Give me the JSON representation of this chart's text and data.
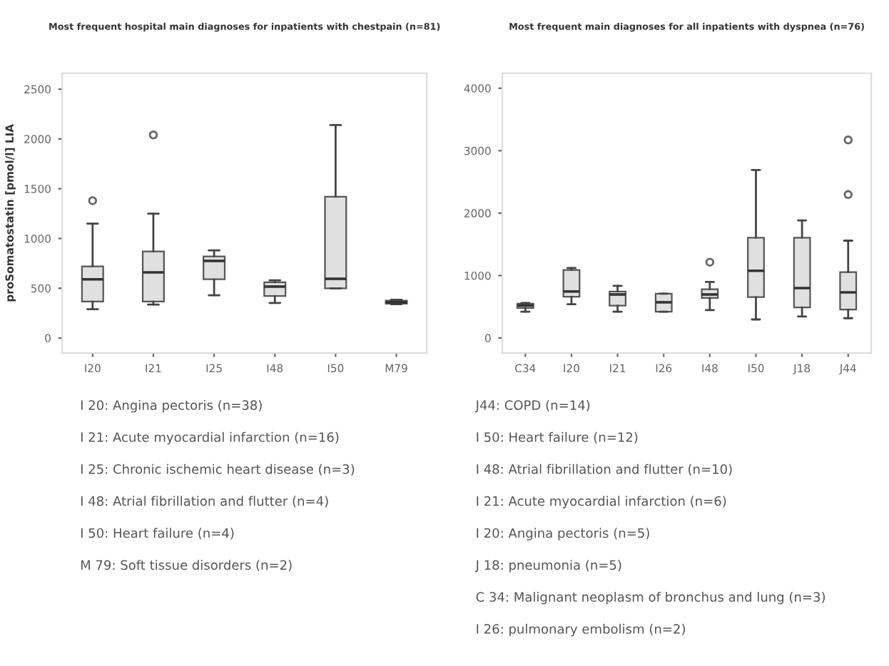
{
  "chart_data": [
    {
      "type": "box",
      "title": "Most frequent hospital main diagnoses for inpatients with chestpain (n=81)",
      "ylabel": "proSomatostatin [pmol/l] LIA",
      "categories": [
        "I20",
        "I21",
        "I25",
        "I48",
        "I50",
        "M79"
      ],
      "ylim": [
        -150,
        2660
      ],
      "yticks": [
        0,
        500,
        1000,
        1500,
        2000,
        2500
      ],
      "color": "#e0e0e0",
      "boxes": [
        {
          "low": 290,
          "q1": 366,
          "median": 590,
          "q3": 720,
          "high": 1150,
          "outliers": [
            1380
          ]
        },
        {
          "low": 336,
          "q1": 366,
          "median": 660,
          "q3": 870,
          "high": 1250,
          "outliers": [
            2040
          ]
        },
        {
          "low": 430,
          "q1": 590,
          "median": 775,
          "q3": 820,
          "high": 880
        },
        {
          "low": 353,
          "q1": 422,
          "median": 517,
          "q3": 560,
          "high": 580
        },
        {
          "low": 500,
          "q1": 500,
          "median": 595,
          "q3": 1420,
          "high": 2140
        },
        {
          "low": 340,
          "q1": 345,
          "median": 360,
          "q3": 375,
          "high": 385
        }
      ],
      "annotations": [
        "I 20: Angina pectoris (n=38)",
        "I 21: Acute myocardial infarction (n=16)",
        "I 25: Chronic ischemic heart disease (n=3)",
        "I 48: Atrial fibrillation and flutter (n=4)",
        "I 50: Heart failure (n=4)",
        "M 79: Soft tissue disorders (n=2)"
      ]
    },
    {
      "type": "box",
      "title": "Most frequent main diagnoses for all inpatients with dyspnea (n=76)",
      "categories": [
        "C34",
        "I20",
        "I21",
        "I26",
        "I48",
        "I50",
        "J18",
        "J44"
      ],
      "ylim": [
        -240,
        4240
      ],
      "yticks": [
        0,
        1000,
        2000,
        3000,
        4000
      ],
      "color": "#e0e0e0",
      "boxes": [
        {
          "low": 420,
          "q1": 480,
          "median": 520,
          "q3": 550,
          "high": 560
        },
        {
          "low": 540,
          "q1": 660,
          "median": 745,
          "q3": 1090,
          "high": 1120
        },
        {
          "low": 420,
          "q1": 517,
          "median": 697,
          "q3": 745,
          "high": 834
        },
        {
          "low": 420,
          "q1": 420,
          "median": 572,
          "q3": 710,
          "high": 710
        },
        {
          "low": 448,
          "q1": 641,
          "median": 697,
          "q3": 780,
          "high": 897,
          "outliers": [
            1214
          ]
        },
        {
          "low": 297,
          "q1": 655,
          "median": 1076,
          "q3": 1607,
          "high": 2690
        },
        {
          "low": 345,
          "q1": 490,
          "median": 800,
          "q3": 1607,
          "high": 1883
        },
        {
          "low": 317,
          "q1": 455,
          "median": 731,
          "q3": 1055,
          "high": 1559,
          "outliers": [
            2297,
            3172
          ]
        }
      ],
      "annotations": [
        "J44: COPD (n=14)",
        "I 50: Heart failure (n=12)",
        "I 48: Atrial fibrillation and flutter (n=10)",
        "I 21: Acute myocardial infarction (n=6)",
        "I 20: Angina pectoris (n=5)",
        "J 18: pneumonia (n=5)",
        "C 34: Malignant neoplasm of bronchus and lung (n=3)",
        "I 26: pulmonary embolism (n=2)"
      ]
    }
  ]
}
